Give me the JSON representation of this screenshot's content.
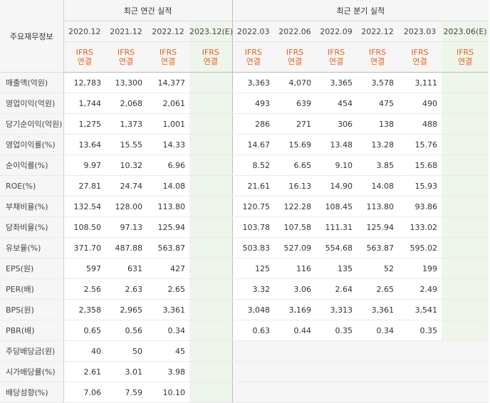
{
  "header": {
    "row_label": "주요재무정보",
    "annual_group": "최근 연간 실적",
    "quarter_group": "최근 분기 실적",
    "annual_periods": [
      "2020.12",
      "2021.12",
      "2022.12",
      "2023.12(E)"
    ],
    "quarter_periods": [
      "2022.03",
      "2022.06",
      "2022.09",
      "2022.12",
      "2023.03",
      "2023.06(E)"
    ],
    "ifrs_line1": "IFRS",
    "ifrs_line2": "연결"
  },
  "rows": [
    {
      "label": "매출액(억원)",
      "annual": [
        "12,783",
        "13,300",
        "14,377",
        ""
      ],
      "quarter": [
        "3,363",
        "4,070",
        "3,365",
        "3,578",
        "3,111",
        ""
      ]
    },
    {
      "label": "영업이익(억원)",
      "annual": [
        "1,744",
        "2,068",
        "2,061",
        ""
      ],
      "quarter": [
        "493",
        "639",
        "454",
        "475",
        "490",
        ""
      ]
    },
    {
      "label": "당기순이익(억원)",
      "annual": [
        "1,275",
        "1,373",
        "1,001",
        ""
      ],
      "quarter": [
        "286",
        "271",
        "306",
        "138",
        "488",
        ""
      ]
    },
    {
      "label": "영업이익률(%)",
      "annual": [
        "13.64",
        "15.55",
        "14.33",
        ""
      ],
      "quarter": [
        "14.67",
        "15.69",
        "13.48",
        "13.28",
        "15.76",
        ""
      ]
    },
    {
      "label": "순이익률(%)",
      "annual": [
        "9.97",
        "10.32",
        "6.96",
        ""
      ],
      "quarter": [
        "8.52",
        "6.65",
        "9.10",
        "3.85",
        "15.68",
        ""
      ]
    },
    {
      "label": "ROE(%)",
      "annual": [
        "27.81",
        "24.74",
        "14.08",
        ""
      ],
      "quarter": [
        "21.61",
        "16.13",
        "14.90",
        "14.08",
        "15.93",
        ""
      ]
    },
    {
      "label": "부채비율(%)",
      "annual": [
        "132.54",
        "128.00",
        "113.80",
        ""
      ],
      "quarter": [
        "120.75",
        "122.28",
        "108.45",
        "113.80",
        "93.86",
        ""
      ]
    },
    {
      "label": "당좌비율(%)",
      "annual": [
        "108.50",
        "97.13",
        "125.94",
        ""
      ],
      "quarter": [
        "103.78",
        "107.58",
        "111.31",
        "125.94",
        "133.02",
        ""
      ]
    },
    {
      "label": "유보율(%)",
      "annual": [
        "371.70",
        "487.88",
        "563.87",
        ""
      ],
      "quarter": [
        "503.83",
        "527.09",
        "554.68",
        "563.87",
        "595.02",
        ""
      ]
    },
    {
      "label": "EPS(원)",
      "annual": [
        "597",
        "631",
        "427",
        ""
      ],
      "quarter": [
        "125",
        "116",
        "135",
        "52",
        "199",
        ""
      ]
    },
    {
      "label": "PER(배)",
      "annual": [
        "2.56",
        "2.63",
        "2.65",
        ""
      ],
      "quarter": [
        "3.32",
        "3.06",
        "2.64",
        "2.65",
        "2.49",
        ""
      ]
    },
    {
      "label": "BPS(원)",
      "annual": [
        "2,358",
        "2,965",
        "3,361",
        ""
      ],
      "quarter": [
        "3,048",
        "3,169",
        "3,313",
        "3,361",
        "3,541",
        ""
      ]
    },
    {
      "label": "PBR(배)",
      "annual": [
        "0.65",
        "0.56",
        "0.34",
        ""
      ],
      "quarter": [
        "0.63",
        "0.44",
        "0.35",
        "0.34",
        "0.35",
        ""
      ]
    },
    {
      "label": "주당배당금(원)",
      "annual": [
        "40",
        "50",
        "45",
        ""
      ],
      "quarter": [
        "",
        "",
        "",
        "",
        "",
        ""
      ]
    },
    {
      "label": "시가배당률(%)",
      "annual": [
        "2.61",
        "3.01",
        "3.98",
        ""
      ],
      "quarter": [
        "",
        "",
        "",
        "",
        "",
        ""
      ]
    },
    {
      "label": "배당성향(%)",
      "annual": [
        "7.06",
        "7.59",
        "10.10",
        ""
      ],
      "quarter": [
        "",
        "",
        "",
        "",
        "",
        ""
      ]
    }
  ],
  "colors": {
    "ifrs": "#e8611a",
    "estimate_bg": "#eef5ea",
    "header_bg": "#f6f6f6"
  }
}
